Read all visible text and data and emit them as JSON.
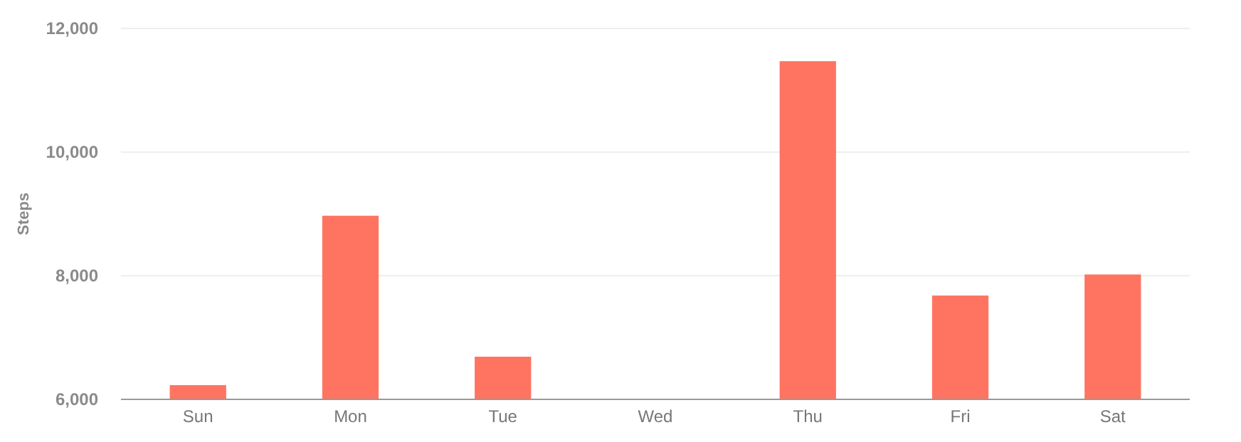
{
  "chart_data": {
    "type": "bar",
    "ylabel": "Steps",
    "categories": [
      "Sun",
      "Mon",
      "Tue",
      "Wed",
      "Thu",
      "Fri",
      "Sat"
    ],
    "values": [
      6230,
      8970,
      6690,
      null,
      11470,
      7680,
      8020
    ],
    "color": "#ff7461",
    "ylim": [
      6000,
      12000
    ],
    "yticks": [
      {
        "value": 6000,
        "label": "6,000"
      },
      {
        "value": 8000,
        "label": "8,000"
      },
      {
        "value": 10000,
        "label": "10,000"
      },
      {
        "value": 12000,
        "label": "12,000"
      }
    ],
    "grid": "y"
  }
}
